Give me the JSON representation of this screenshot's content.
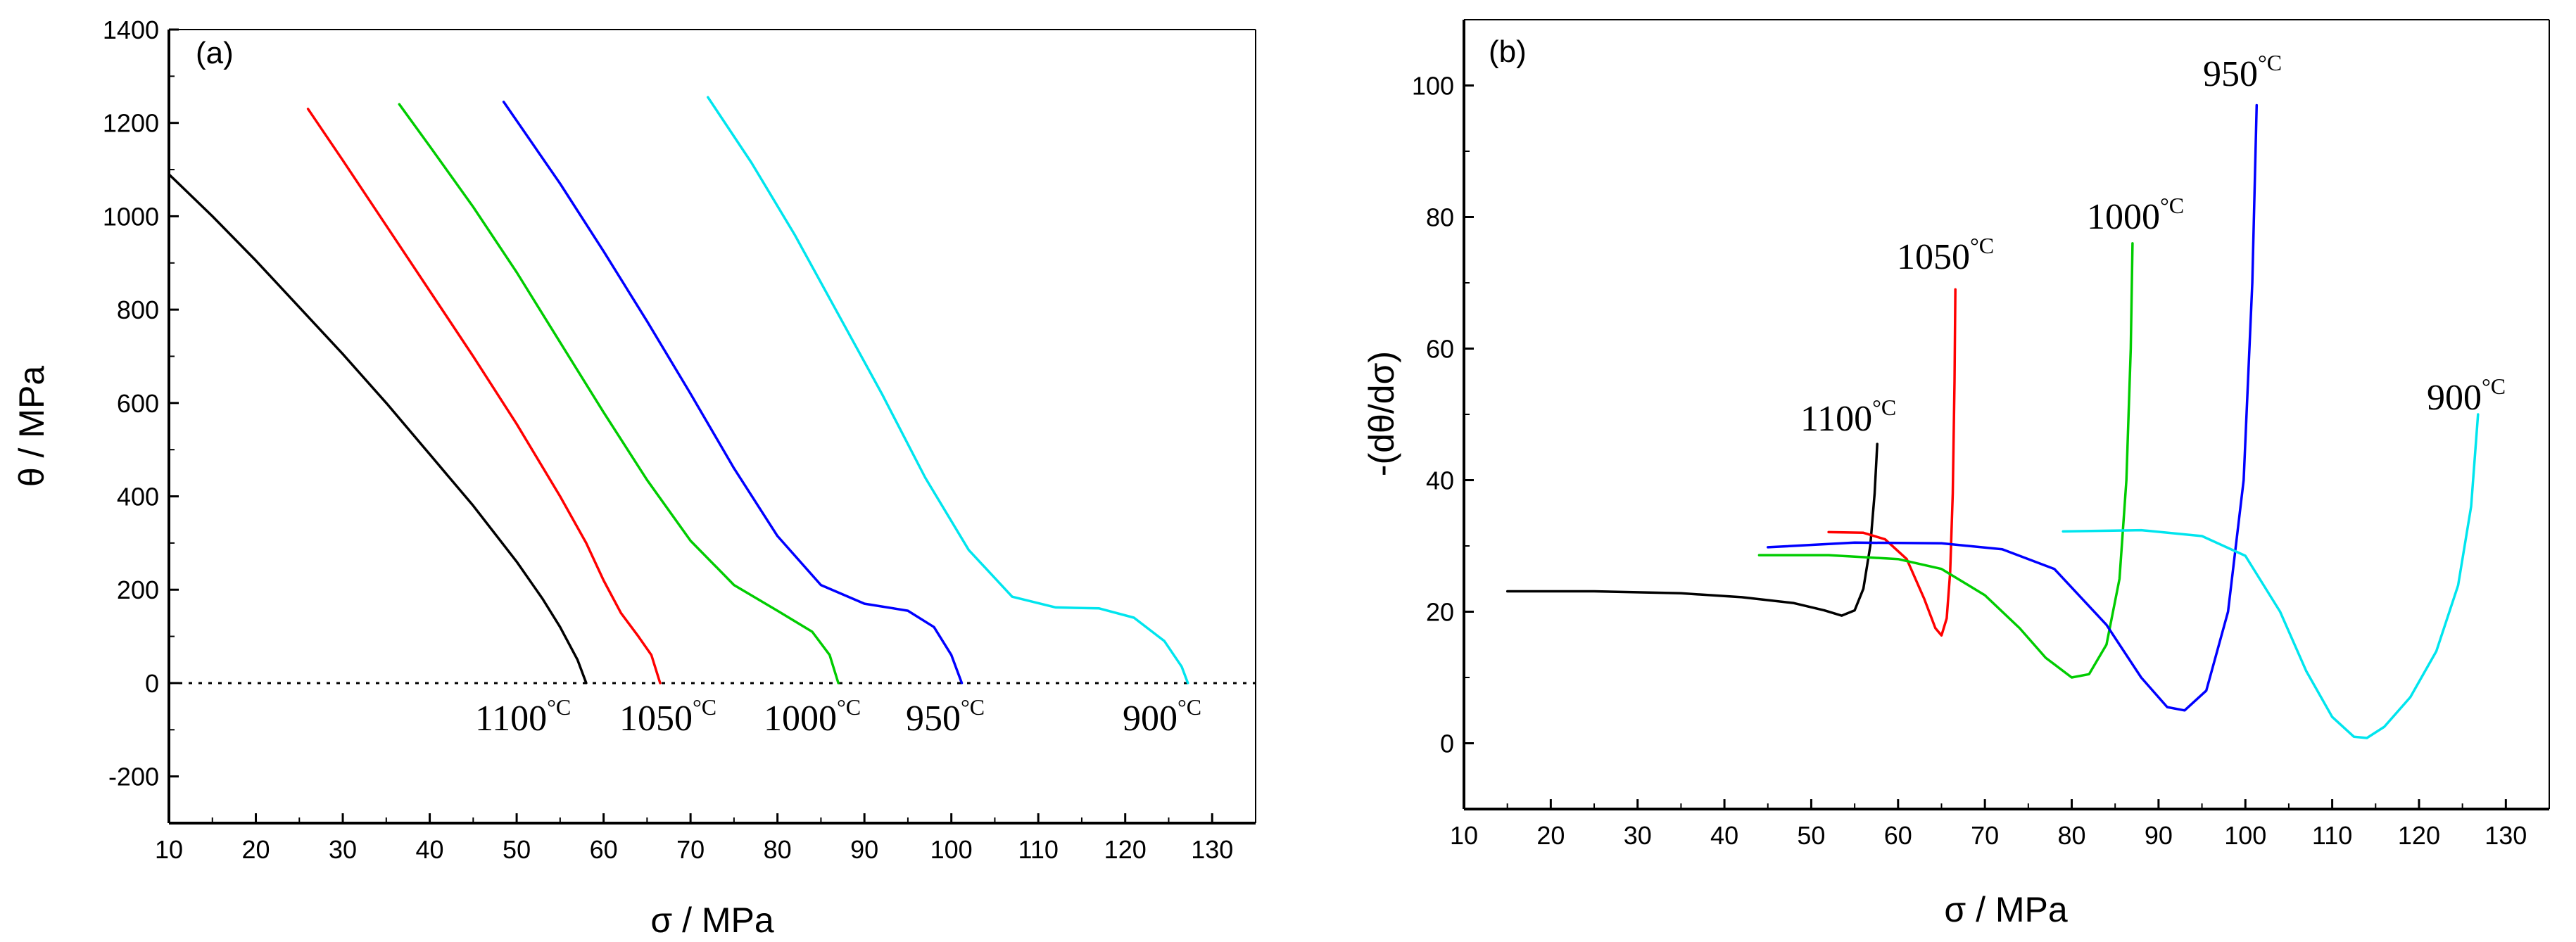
{
  "chart_data": [
    {
      "type": "line",
      "panel_label": "(a)",
      "xlabel": "σ / MPa",
      "ylabel": "θ / MPa",
      "xlim": [
        10,
        135
      ],
      "ylim": [
        -300,
        1400
      ],
      "x_ticks": [
        10,
        20,
        30,
        40,
        50,
        60,
        70,
        80,
        90,
        100,
        110,
        120,
        130
      ],
      "y_ticks": [
        -200,
        0,
        200,
        400,
        600,
        800,
        1000,
        1200,
        1400
      ],
      "reference_line": {
        "y": 0,
        "style": "dotted"
      },
      "series": [
        {
          "name": "1100",
          "unit": "°C",
          "color": "#000000",
          "x": [
            10,
            15,
            20,
            25,
            30,
            35,
            40,
            45,
            50,
            53,
            55,
            57,
            58
          ],
          "y": [
            1090,
            1000,
            905,
            805,
            705,
            600,
            490,
            380,
            260,
            180,
            120,
            50,
            0
          ]
        },
        {
          "name": "1050",
          "unit": "°C",
          "color": "#ff0000",
          "x": [
            26,
            30,
            35,
            40,
            45,
            50,
            55,
            58,
            60,
            62,
            64,
            65.5,
            66.5
          ],
          "y": [
            1230,
            1120,
            980,
            840,
            700,
            555,
            400,
            300,
            220,
            150,
            100,
            60,
            0
          ]
        },
        {
          "name": "1000",
          "unit": "°C",
          "color": "#00cc00",
          "x": [
            36.5,
            40,
            45,
            50,
            55,
            60,
            65,
            70,
            75,
            80,
            84,
            86,
            87
          ],
          "y": [
            1240,
            1150,
            1020,
            880,
            730,
            580,
            435,
            305,
            210,
            155,
            110,
            60,
            0
          ]
        },
        {
          "name": "950",
          "unit": "°C",
          "color": "#0000ff",
          "x": [
            48.5,
            55,
            60,
            65,
            70,
            75,
            80,
            85,
            90,
            95,
            98,
            100,
            101.2
          ],
          "y": [
            1245,
            1070,
            925,
            775,
            620,
            460,
            315,
            210,
            170,
            155,
            120,
            60,
            0
          ]
        },
        {
          "name": "900",
          "unit": "°C",
          "color": "#00e5ee",
          "x": [
            72,
            77,
            82,
            87,
            92,
            97,
            102,
            107,
            112,
            117,
            121,
            124.5,
            126.5,
            127.2
          ],
          "y": [
            1255,
            1115,
            960,
            790,
            620,
            440,
            285,
            185,
            162,
            160,
            140,
            90,
            35,
            0
          ]
        }
      ]
    },
    {
      "type": "line",
      "panel_label": "(b)",
      "xlabel": "σ / MPa",
      "ylabel": "-(dθ/dσ)",
      "xlim": [
        10,
        135
      ],
      "ylim": [
        -10,
        110
      ],
      "x_ticks": [
        10,
        20,
        30,
        40,
        50,
        60,
        70,
        80,
        90,
        100,
        110,
        120,
        130
      ],
      "y_ticks": [
        0,
        20,
        40,
        60,
        80,
        100
      ],
      "series": [
        {
          "name": "1100",
          "unit": "°C",
          "color": "#000000",
          "x": [
            15,
            25,
            35,
            42,
            48,
            51.5,
            53.5,
            55,
            56,
            56.8,
            57.3,
            57.6
          ],
          "y": [
            23.1,
            23.1,
            22.8,
            22.2,
            21.3,
            20.2,
            19.4,
            20.2,
            23.5,
            30,
            38,
            45.5
          ]
        },
        {
          "name": "1050",
          "unit": "°C",
          "color": "#ff0000",
          "x": [
            52,
            56,
            58.5,
            61,
            63,
            64.3,
            65,
            65.6,
            66,
            66.3,
            66.5,
            66.6
          ],
          "y": [
            32.1,
            32.0,
            31.0,
            28.0,
            22.0,
            17.5,
            16.4,
            19,
            26,
            38,
            55,
            69
          ]
        },
        {
          "name": "1000",
          "unit": "°C",
          "color": "#00cc00",
          "x": [
            44,
            52,
            60,
            65,
            70,
            74,
            77,
            80,
            82,
            84,
            85.5,
            86.3,
            86.8,
            87
          ],
          "y": [
            28.6,
            28.6,
            28.0,
            26.5,
            22.5,
            17.5,
            13,
            10,
            10.5,
            15,
            25,
            40,
            60,
            76
          ]
        },
        {
          "name": "950",
          "unit": "°C",
          "color": "#0000ff",
          "x": [
            45,
            55,
            65,
            72,
            78,
            84,
            88,
            91,
            93,
            95.5,
            98,
            99.8,
            100.8,
            101.3
          ],
          "y": [
            29.8,
            30.5,
            30.4,
            29.5,
            26.5,
            18,
            10,
            5.5,
            5.0,
            8,
            20,
            40,
            70,
            97
          ]
        },
        {
          "name": "900",
          "unit": "°C",
          "color": "#00e5ee",
          "x": [
            79,
            88,
            95,
            100,
            104,
            107,
            110,
            112.5,
            114,
            116,
            119,
            122,
            124.5,
            126,
            126.8
          ],
          "y": [
            32.2,
            32.4,
            31.5,
            28.5,
            20,
            11,
            4,
            1,
            0.8,
            2.5,
            7,
            14,
            24,
            36,
            50
          ]
        }
      ]
    }
  ]
}
